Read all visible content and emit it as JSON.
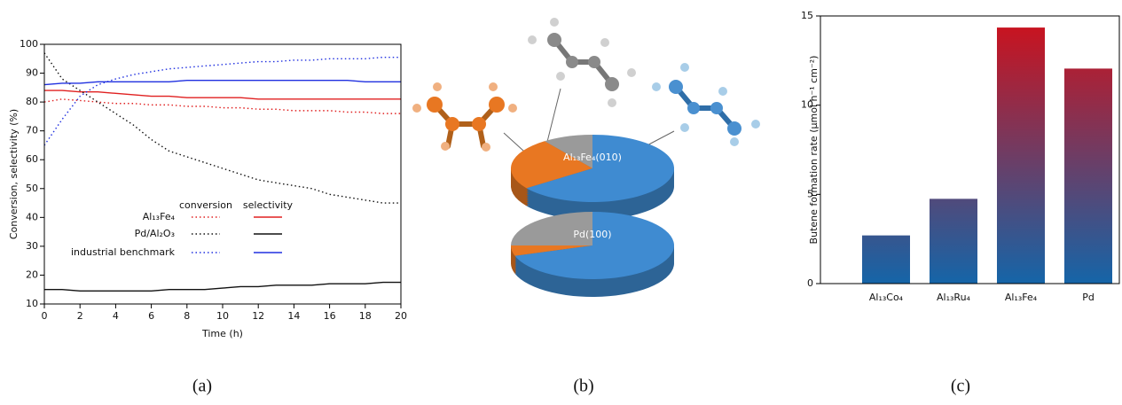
{
  "chart_data": [
    {
      "type": "line",
      "caption": "(a)",
      "xlabel": "Time (h)",
      "ylabel": "Conversion, selectivity (%)",
      "x": [
        0,
        1,
        2,
        3,
        4,
        5,
        6,
        7,
        8,
        9,
        10,
        11,
        12,
        13,
        14,
        15,
        16,
        17,
        18,
        19,
        20
      ],
      "xlim": [
        0,
        20
      ],
      "xticks": [
        0,
        2,
        4,
        6,
        8,
        10,
        12,
        14,
        16,
        18,
        20
      ],
      "ylim": [
        10,
        100
      ],
      "yticks": [
        10,
        20,
        30,
        40,
        50,
        60,
        70,
        80,
        90,
        100
      ],
      "columns": [
        {
          "name": "conversion",
          "style": "dotted"
        },
        {
          "name": "selectivity",
          "style": "solid"
        }
      ],
      "series": [
        {
          "name": "Al₁₃Fe₄",
          "color": "#e02020",
          "values": [
            [
              80,
              81,
              80.5,
              80,
              79.5,
              79.5,
              79,
              79,
              78.5,
              78.5,
              78,
              78,
              77.5,
              77.5,
              77,
              77,
              77,
              76.5,
              76.5,
              76,
              76
            ],
            [
              84,
              84,
              83.5,
              83.5,
              83,
              82.5,
              82,
              82,
              81.5,
              81.5,
              81.5,
              81.5,
              81,
              81,
              81,
              81,
              81,
              81,
              81,
              81,
              81
            ]
          ]
        },
        {
          "name": "Pd/Al₂O₃",
          "color": "#111111",
          "values": [
            [
              97,
              88,
              84,
              80,
              76,
              72,
              67,
              63,
              61,
              59,
              57,
              55,
              53,
              52,
              51,
              50,
              48,
              47,
              46,
              45,
              45
            ],
            [
              15,
              15,
              14.5,
              14.5,
              14.5,
              14.5,
              14.5,
              15,
              15,
              15,
              15.5,
              16,
              16,
              16.5,
              16.5,
              16.5,
              17,
              17,
              17,
              17.5,
              17.5
            ]
          ]
        },
        {
          "name": "industrial benchmark",
          "color": "#2030e0",
          "values": [
            [
              65,
              74,
              82,
              86,
              88,
              89.5,
              90.5,
              91.5,
              92,
              92.5,
              93,
              93.5,
              94,
              94,
              94.5,
              94.5,
              95,
              95,
              95,
              95.5,
              95.5
            ],
            [
              86,
              86.5,
              86.5,
              87,
              87,
              87,
              87,
              87,
              87.5,
              87.5,
              87.5,
              87.5,
              87.5,
              87.5,
              87.5,
              87.5,
              87.5,
              87.5,
              87,
              87,
              87
            ]
          ]
        }
      ]
    },
    {
      "type": "pie",
      "caption": "(b)",
      "colors": [
        "#9a9a9a",
        "#e87722",
        "#3f8bd1"
      ],
      "pies": [
        {
          "label": "Al₁₃Fe₄(010)",
          "values": [
            10,
            25,
            65
          ]
        },
        {
          "label": "Pd(100)",
          "values": [
            25,
            5,
            70
          ]
        }
      ]
    },
    {
      "type": "bar",
      "caption": "(c)",
      "ylabel": "Butene formation rate (µmol h⁻¹ cm⁻²)",
      "categories": [
        "Al₁₃Co₄",
        "Al₁₃Ru₄",
        "Al₁₃Fe₄",
        "Pd"
      ],
      "values": [
        2.7,
        4.75,
        14.35,
        12.05
      ],
      "ylim": [
        0,
        15
      ],
      "yticks": [
        0,
        5,
        10,
        15
      ],
      "gradient": [
        "#1565a8",
        "#d0101a"
      ]
    }
  ]
}
